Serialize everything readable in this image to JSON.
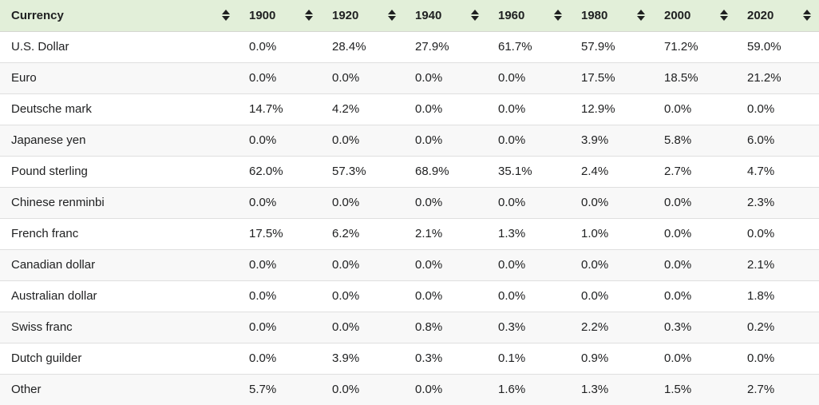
{
  "table": {
    "columns": [
      "Currency",
      "1900",
      "1920",
      "1940",
      "1960",
      "1980",
      "2000",
      "2020"
    ],
    "sort_icon": "sort-up-down-arrows",
    "rows": [
      {
        "currency": "U.S. Dollar",
        "values": [
          "0.0%",
          "28.4%",
          "27.9%",
          "61.7%",
          "57.9%",
          "71.2%",
          "59.0%"
        ]
      },
      {
        "currency": "Euro",
        "values": [
          "0.0%",
          "0.0%",
          "0.0%",
          "0.0%",
          "17.5%",
          "18.5%",
          "21.2%"
        ]
      },
      {
        "currency": "Deutsche mark",
        "values": [
          "14.7%",
          "4.2%",
          "0.0%",
          "0.0%",
          "12.9%",
          "0.0%",
          "0.0%"
        ]
      },
      {
        "currency": "Japanese yen",
        "values": [
          "0.0%",
          "0.0%",
          "0.0%",
          "0.0%",
          "3.9%",
          "5.8%",
          "6.0%"
        ]
      },
      {
        "currency": "Pound sterling",
        "values": [
          "62.0%",
          "57.3%",
          "68.9%",
          "35.1%",
          "2.4%",
          "2.7%",
          "4.7%"
        ]
      },
      {
        "currency": "Chinese renminbi",
        "values": [
          "0.0%",
          "0.0%",
          "0.0%",
          "0.0%",
          "0.0%",
          "0.0%",
          "2.3%"
        ]
      },
      {
        "currency": "French franc",
        "values": [
          "17.5%",
          "6.2%",
          "2.1%",
          "1.3%",
          "1.0%",
          "0.0%",
          "0.0%"
        ]
      },
      {
        "currency": "Canadian dollar",
        "values": [
          "0.0%",
          "0.0%",
          "0.0%",
          "0.0%",
          "0.0%",
          "0.0%",
          "2.1%"
        ]
      },
      {
        "currency": "Australian dollar",
        "values": [
          "0.0%",
          "0.0%",
          "0.0%",
          "0.0%",
          "0.0%",
          "0.0%",
          "1.8%"
        ]
      },
      {
        "currency": "Swiss franc",
        "values": [
          "0.0%",
          "0.0%",
          "0.8%",
          "0.3%",
          "2.2%",
          "0.3%",
          "0.2%"
        ]
      },
      {
        "currency": "Dutch guilder",
        "values": [
          "0.0%",
          "3.9%",
          "0.3%",
          "0.1%",
          "0.9%",
          "0.0%",
          "0.0%"
        ]
      },
      {
        "currency": "Other",
        "values": [
          "5.7%",
          "0.0%",
          "0.0%",
          "1.6%",
          "1.3%",
          "1.5%",
          "2.7%"
        ]
      }
    ]
  },
  "colors": {
    "header_bg": "#e2efd9",
    "row_bg": "#ffffff",
    "row_alt_bg": "#f8f8f8",
    "row_border": "#dfdfdf",
    "header_border": "#d4d6d0",
    "text": "#202122"
  }
}
